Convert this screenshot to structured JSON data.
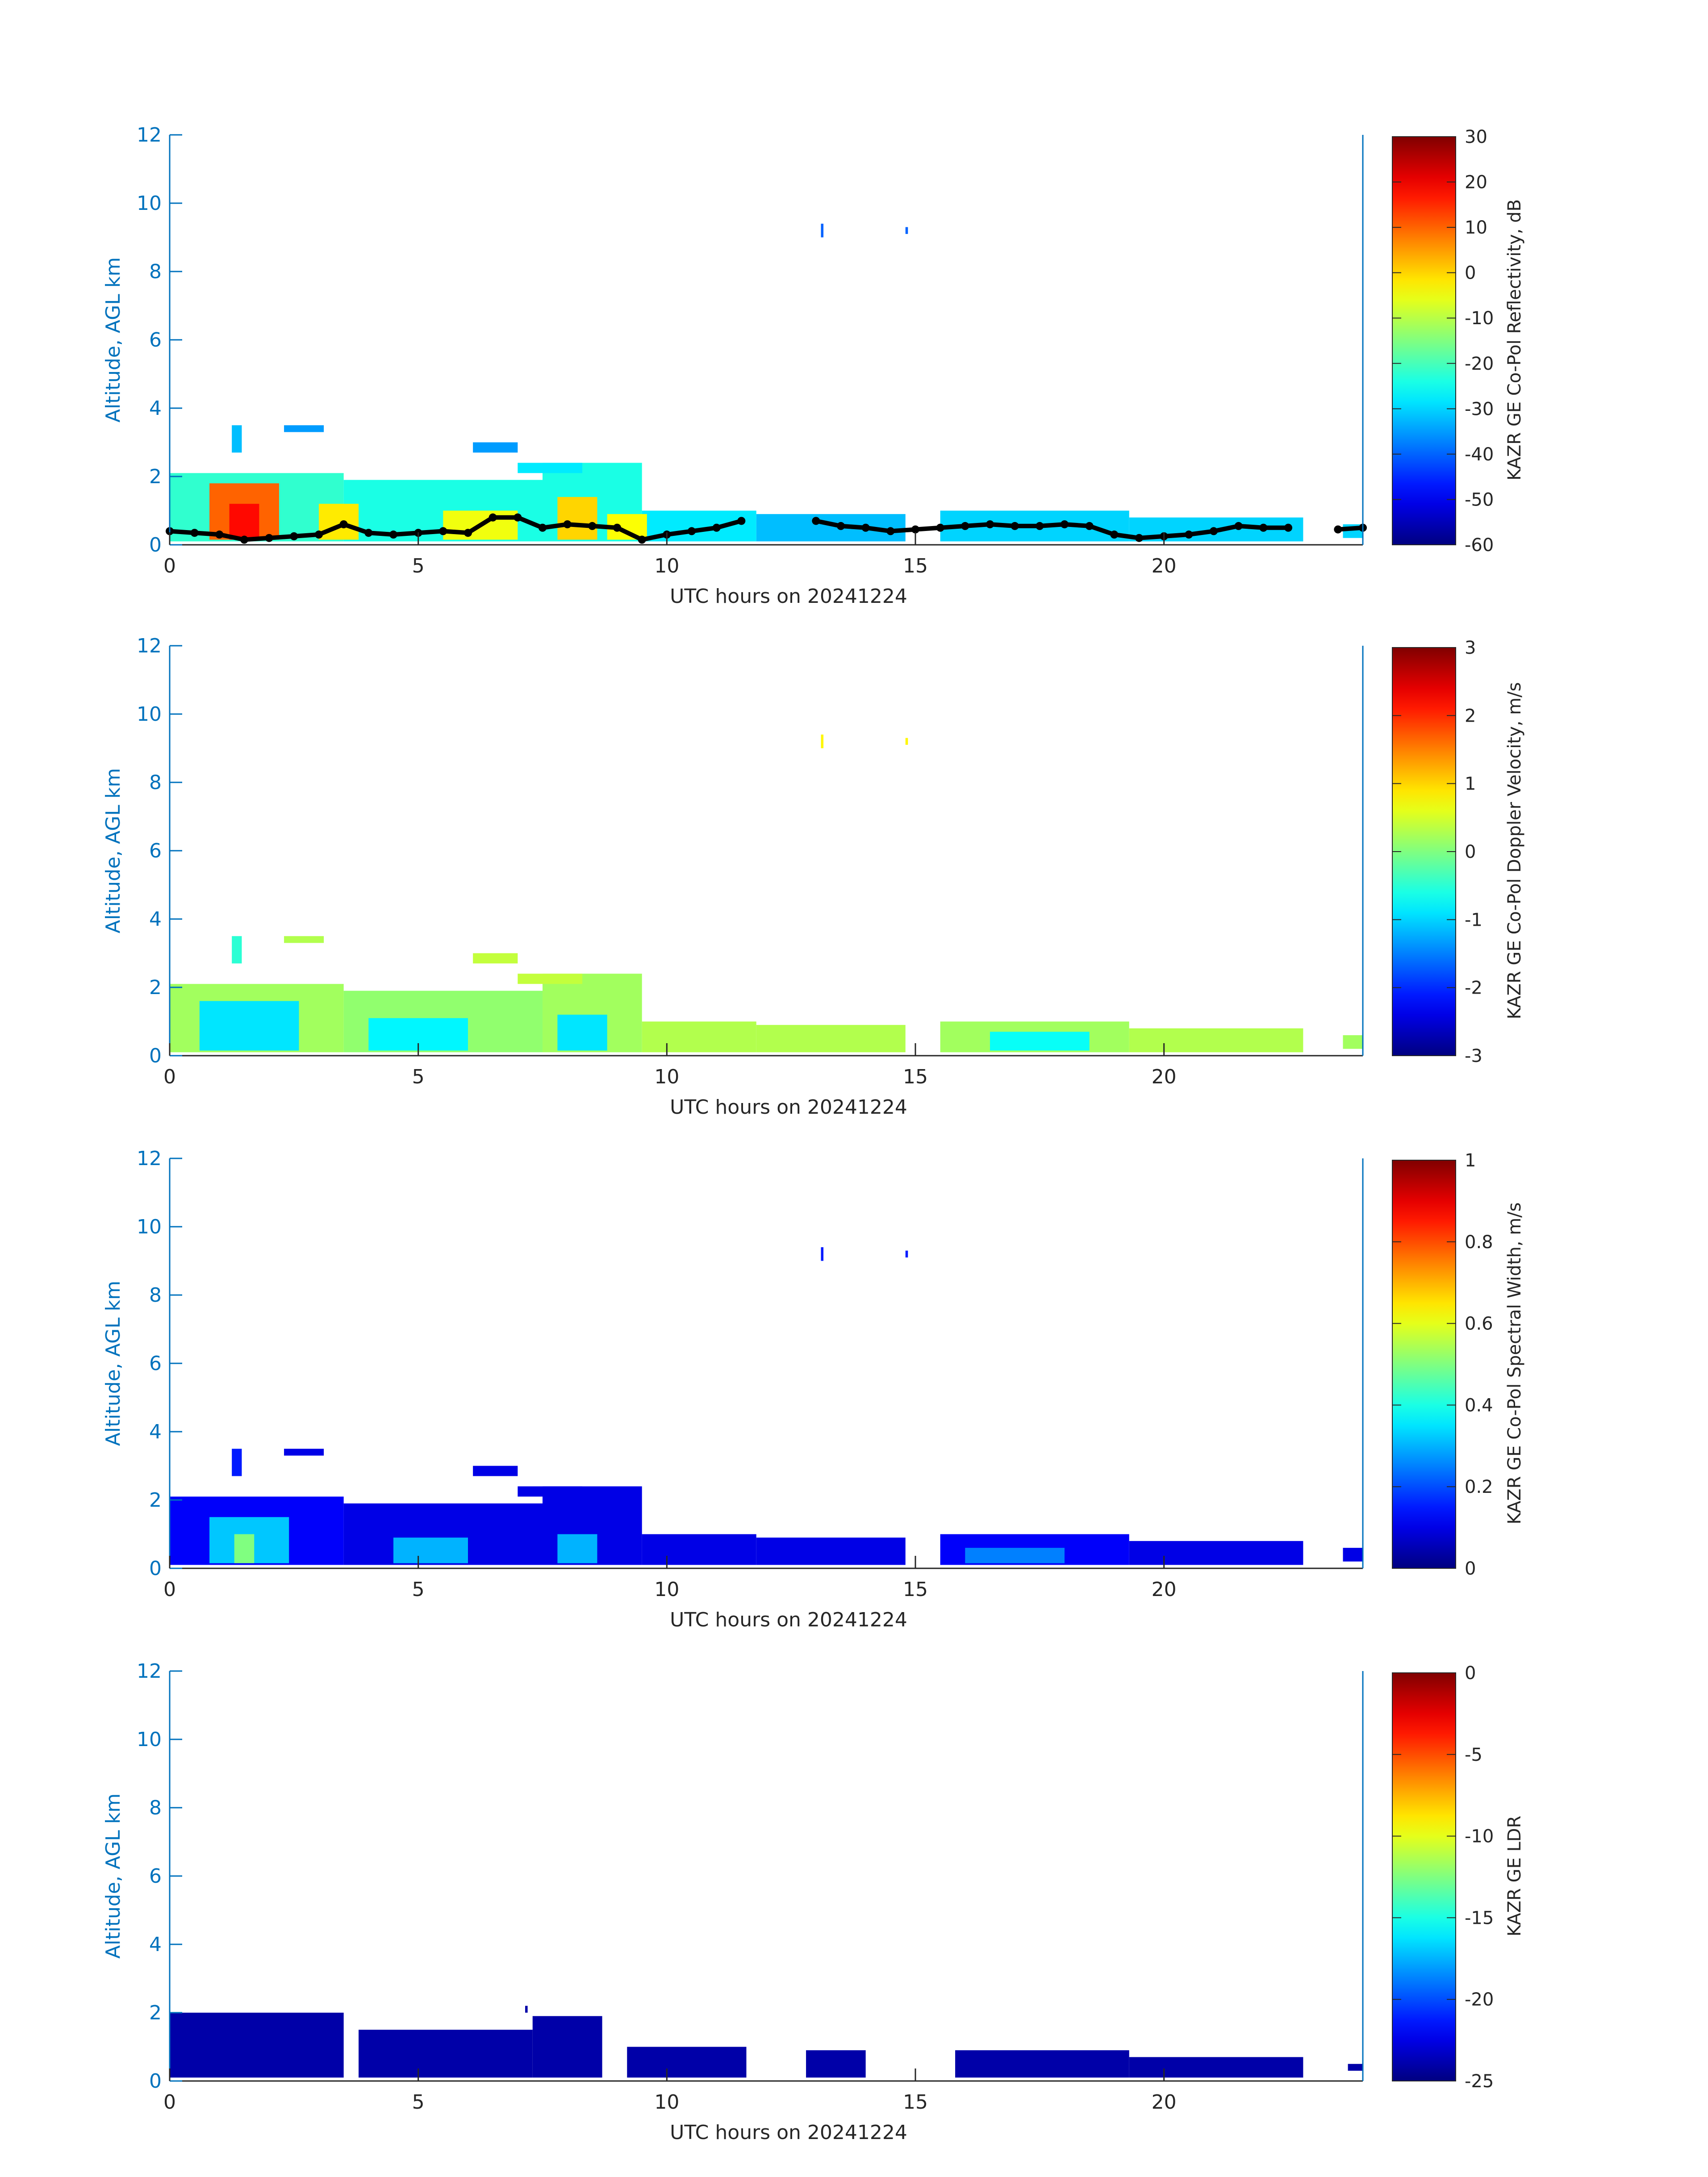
{
  "figure": {
    "background": "#ffffff",
    "axis_color": "#0072bd",
    "text_color": "#262626"
  },
  "chart_data": [
    {
      "type": "heatmap",
      "variable": "reflectivity",
      "xlabel": "UTC hours on 20241224",
      "ylabel": "Altitude, AGL km",
      "xlim": [
        0,
        24
      ],
      "ylim": [
        0,
        12
      ],
      "xticks": [
        "0",
        "5",
        "10",
        "15",
        "20"
      ],
      "xtick_values": [
        0,
        5,
        10,
        15,
        20
      ],
      "yticks": [
        "0",
        "2",
        "4",
        "6",
        "8",
        "10",
        "12"
      ],
      "ytick_values": [
        0,
        2,
        4,
        6,
        8,
        10,
        12
      ],
      "colorbar": {
        "label": "KAZR GE Co-Pol Reflectivity, dB",
        "range": [
          -60,
          30
        ],
        "colormap": "jet",
        "ticks": [
          "30",
          "20",
          "10",
          "0",
          "-10",
          "-20",
          "-30",
          "-40",
          "-50",
          "-60"
        ],
        "tick_values": [
          30,
          20,
          10,
          0,
          -10,
          -20,
          -30,
          -40,
          -50,
          -60
        ]
      },
      "overlay": {
        "name": "cloud base",
        "color": "#000000",
        "x": [
          0,
          0.5,
          1,
          1.5,
          2,
          2.5,
          3,
          3.5,
          4,
          4.5,
          5,
          5.5,
          6,
          6.5,
          7,
          7.5,
          8,
          8.5,
          9,
          9.5,
          10,
          10.5,
          11,
          11.5,
          12,
          12.5,
          13,
          13.5,
          14,
          14.5,
          15,
          15.5,
          16,
          16.5,
          17,
          17.5,
          18,
          18.5,
          19,
          19.5,
          20,
          20.5,
          21,
          21.5,
          22,
          22.5,
          23,
          23.5,
          24
        ],
        "y": [
          0.4,
          0.35,
          0.3,
          0.15,
          0.2,
          0.25,
          0.3,
          0.6,
          0.35,
          0.3,
          0.35,
          0.4,
          0.35,
          0.8,
          0.8,
          0.5,
          0.6,
          0.55,
          0.5,
          0.15,
          0.3,
          0.4,
          0.5,
          0.7,
          null,
          null,
          0.7,
          0.55,
          0.5,
          0.4,
          0.45,
          0.5,
          0.55,
          0.6,
          0.55,
          0.55,
          0.6,
          0.55,
          0.3,
          0.2,
          0.25,
          0.3,
          0.4,
          0.55,
          0.5,
          0.5,
          null,
          0.45,
          0.5
        ]
      },
      "regions": [
        {
          "x": [
            0,
            3.5
          ],
          "y": [
            0.1,
            2.1
          ],
          "value": -22
        },
        {
          "x": [
            3.5,
            7.5
          ],
          "y": [
            0.1,
            1.9
          ],
          "value": -24
        },
        {
          "x": [
            7.5,
            9.5
          ],
          "y": [
            0.1,
            2.4
          ],
          "value": -24
        },
        {
          "x": [
            9.5,
            11.8
          ],
          "y": [
            0.1,
            1.0
          ],
          "value": -28
        },
        {
          "x": [
            11.8,
            14.8
          ],
          "y": [
            0.1,
            0.9
          ],
          "value": -32
        },
        {
          "x": [
            15.5,
            19.3
          ],
          "y": [
            0.1,
            1.0
          ],
          "value": -30
        },
        {
          "x": [
            19.3,
            22.8
          ],
          "y": [
            0.1,
            0.8
          ],
          "value": -30
        },
        {
          "x": [
            23.6,
            24
          ],
          "y": [
            0.2,
            0.6
          ],
          "value": -30
        },
        {
          "x": [
            0.8,
            2.2
          ],
          "y": [
            0.15,
            1.8
          ],
          "value": 10
        },
        {
          "x": [
            1.2,
            1.8
          ],
          "y": [
            0.15,
            1.2
          ],
          "value": 18
        },
        {
          "x": [
            3.0,
            3.8
          ],
          "y": [
            0.15,
            1.2
          ],
          "value": -2
        },
        {
          "x": [
            5.5,
            7.0
          ],
          "y": [
            0.15,
            1.0
          ],
          "value": -5
        },
        {
          "x": [
            7.8,
            8.6
          ],
          "y": [
            0.15,
            1.4
          ],
          "value": 0
        },
        {
          "x": [
            8.8,
            9.6
          ],
          "y": [
            0.15,
            0.9
          ],
          "value": -4
        },
        {
          "x": [
            1.25,
            1.45
          ],
          "y": [
            2.7,
            3.5
          ],
          "value": -32
        },
        {
          "x": [
            2.3,
            3.1
          ],
          "y": [
            3.3,
            3.5
          ],
          "value": -35
        },
        {
          "x": [
            6.1,
            7.0
          ],
          "y": [
            2.7,
            3.0
          ],
          "value": -35
        },
        {
          "x": [
            7.0,
            8.3
          ],
          "y": [
            2.1,
            2.4
          ],
          "value": -28
        },
        {
          "x": [
            13.1,
            13.15
          ],
          "y": [
            9.0,
            9.4
          ],
          "value": -40
        },
        {
          "x": [
            14.8,
            14.85
          ],
          "y": [
            9.1,
            9.3
          ],
          "value": -40
        }
      ]
    },
    {
      "type": "heatmap",
      "variable": "doppler_velocity",
      "xlabel": "UTC hours on 20241224",
      "ylabel": "Altitude, AGL km",
      "xlim": [
        0,
        24
      ],
      "ylim": [
        0,
        12
      ],
      "xticks": [
        "0",
        "5",
        "10",
        "15",
        "20"
      ],
      "xtick_values": [
        0,
        5,
        10,
        15,
        20
      ],
      "yticks": [
        "0",
        "2",
        "4",
        "6",
        "8",
        "10",
        "12"
      ],
      "ytick_values": [
        0,
        2,
        4,
        6,
        8,
        10,
        12
      ],
      "colorbar": {
        "label": "KAZR GE Co-Pol Doppler Velocity, m/s",
        "range": [
          -3,
          3
        ],
        "colormap": "jet",
        "ticks": [
          "3",
          "2",
          "1",
          "0",
          "-1",
          "-2",
          "-3"
        ],
        "tick_values": [
          3,
          2,
          1,
          0,
          -1,
          -2,
          -3
        ]
      },
      "regions": [
        {
          "x": [
            0,
            3.5
          ],
          "y": [
            0.1,
            2.1
          ],
          "value": 0.2
        },
        {
          "x": [
            3.5,
            7.5
          ],
          "y": [
            0.1,
            1.9
          ],
          "value": 0.1
        },
        {
          "x": [
            7.5,
            9.5
          ],
          "y": [
            0.1,
            2.4
          ],
          "value": 0.2
        },
        {
          "x": [
            9.5,
            11.8
          ],
          "y": [
            0.1,
            1.0
          ],
          "value": 0.3
        },
        {
          "x": [
            11.8,
            14.8
          ],
          "y": [
            0.1,
            0.9
          ],
          "value": 0.3
        },
        {
          "x": [
            15.5,
            19.3
          ],
          "y": [
            0.1,
            1.0
          ],
          "value": 0.2
        },
        {
          "x": [
            19.3,
            22.8
          ],
          "y": [
            0.1,
            0.8
          ],
          "value": 0.3
        },
        {
          "x": [
            23.6,
            24
          ],
          "y": [
            0.2,
            0.6
          ],
          "value": 0.2
        },
        {
          "x": [
            0.6,
            2.6
          ],
          "y": [
            0.15,
            1.6
          ],
          "value": -0.9
        },
        {
          "x": [
            4.0,
            6.0
          ],
          "y": [
            0.15,
            1.1
          ],
          "value": -0.8
        },
        {
          "x": [
            7.8,
            8.8
          ],
          "y": [
            0.15,
            1.2
          ],
          "value": -0.9
        },
        {
          "x": [
            16.5,
            18.5
          ],
          "y": [
            0.15,
            0.7
          ],
          "value": -0.7
        },
        {
          "x": [
            1.25,
            1.45
          ],
          "y": [
            2.7,
            3.5
          ],
          "value": -0.5
        },
        {
          "x": [
            2.3,
            3.1
          ],
          "y": [
            3.3,
            3.5
          ],
          "value": 0.3
        },
        {
          "x": [
            6.1,
            7.0
          ],
          "y": [
            2.7,
            3.0
          ],
          "value": 0.4
        },
        {
          "x": [
            7.0,
            8.3
          ],
          "y": [
            2.1,
            2.4
          ],
          "value": 0.4
        },
        {
          "x": [
            13.1,
            13.15
          ],
          "y": [
            9.0,
            9.4
          ],
          "value": 0.8
        },
        {
          "x": [
            14.8,
            14.85
          ],
          "y": [
            9.1,
            9.3
          ],
          "value": 0.8
        }
      ]
    },
    {
      "type": "heatmap",
      "variable": "spectral_width",
      "xlabel": "UTC hours on 20241224",
      "ylabel": "Altitude, AGL km",
      "xlim": [
        0,
        24
      ],
      "ylim": [
        0,
        12
      ],
      "xticks": [
        "0",
        "5",
        "10",
        "15",
        "20"
      ],
      "xtick_values": [
        0,
        5,
        10,
        15,
        20
      ],
      "yticks": [
        "0",
        "2",
        "4",
        "6",
        "8",
        "10",
        "12"
      ],
      "ytick_values": [
        0,
        2,
        4,
        6,
        8,
        10,
        12
      ],
      "colorbar": {
        "label": "KAZR GE Co-Pol Spectral Width, m/s",
        "range": [
          0,
          1
        ],
        "colormap": "jet",
        "ticks": [
          "1",
          "0.8",
          "0.6",
          "0.4",
          "0.2",
          "0"
        ],
        "tick_values": [
          1,
          0.8,
          0.6,
          0.4,
          0.2,
          0
        ]
      },
      "regions": [
        {
          "x": [
            0,
            3.5
          ],
          "y": [
            0.1,
            2.1
          ],
          "value": 0.12
        },
        {
          "x": [
            3.5,
            7.5
          ],
          "y": [
            0.1,
            1.9
          ],
          "value": 0.1
        },
        {
          "x": [
            7.5,
            9.5
          ],
          "y": [
            0.1,
            2.4
          ],
          "value": 0.1
        },
        {
          "x": [
            9.5,
            11.8
          ],
          "y": [
            0.1,
            1.0
          ],
          "value": 0.1
        },
        {
          "x": [
            11.8,
            14.8
          ],
          "y": [
            0.1,
            0.9
          ],
          "value": 0.1
        },
        {
          "x": [
            15.5,
            19.3
          ],
          "y": [
            0.1,
            1.0
          ],
          "value": 0.12
        },
        {
          "x": [
            19.3,
            22.8
          ],
          "y": [
            0.1,
            0.8
          ],
          "value": 0.1
        },
        {
          "x": [
            23.6,
            24
          ],
          "y": [
            0.2,
            0.6
          ],
          "value": 0.1
        },
        {
          "x": [
            0.8,
            2.4
          ],
          "y": [
            0.15,
            1.5
          ],
          "value": 0.32
        },
        {
          "x": [
            1.3,
            1.7
          ],
          "y": [
            0.15,
            1.0
          ],
          "value": 0.5
        },
        {
          "x": [
            4.5,
            6.0
          ],
          "y": [
            0.15,
            0.9
          ],
          "value": 0.3
        },
        {
          "x": [
            7.8,
            8.6
          ],
          "y": [
            0.15,
            1.0
          ],
          "value": 0.3
        },
        {
          "x": [
            16.0,
            18.0
          ],
          "y": [
            0.15,
            0.6
          ],
          "value": 0.25
        },
        {
          "x": [
            1.25,
            1.45
          ],
          "y": [
            2.7,
            3.5
          ],
          "value": 0.15
        },
        {
          "x": [
            2.3,
            3.1
          ],
          "y": [
            3.3,
            3.5
          ],
          "value": 0.1
        },
        {
          "x": [
            6.1,
            7.0
          ],
          "y": [
            2.7,
            3.0
          ],
          "value": 0.1
        },
        {
          "x": [
            7.0,
            8.3
          ],
          "y": [
            2.1,
            2.4
          ],
          "value": 0.1
        },
        {
          "x": [
            13.1,
            13.15
          ],
          "y": [
            9.0,
            9.4
          ],
          "value": 0.15
        },
        {
          "x": [
            14.8,
            14.85
          ],
          "y": [
            9.1,
            9.3
          ],
          "value": 0.15
        }
      ]
    },
    {
      "type": "heatmap",
      "variable": "ldr",
      "xlabel": "UTC hours on 20241224",
      "ylabel": "Altitude, AGL km",
      "xlim": [
        0,
        24
      ],
      "ylim": [
        0,
        12
      ],
      "xticks": [
        "0",
        "5",
        "10",
        "15",
        "20"
      ],
      "xtick_values": [
        0,
        5,
        10,
        15,
        20
      ],
      "yticks": [
        "0",
        "2",
        "4",
        "6",
        "8",
        "10",
        "12"
      ],
      "ytick_values": [
        0,
        2,
        4,
        6,
        8,
        10,
        12
      ],
      "colorbar": {
        "label": "KAZR GE LDR",
        "range": [
          -25,
          0
        ],
        "colormap": "jet",
        "ticks": [
          "0",
          "-5",
          "-10",
          "-15",
          "-20",
          "-25"
        ],
        "tick_values": [
          0,
          -5,
          -10,
          -15,
          -20,
          -25
        ]
      },
      "regions": [
        {
          "x": [
            0,
            3.5
          ],
          "y": [
            0.1,
            2.0
          ],
          "value": -24
        },
        {
          "x": [
            3.8,
            7.3
          ],
          "y": [
            0.1,
            1.5
          ],
          "value": -24
        },
        {
          "x": [
            7.3,
            8.7
          ],
          "y": [
            0.1,
            1.9
          ],
          "value": -24
        },
        {
          "x": [
            9.2,
            11.6
          ],
          "y": [
            0.1,
            1.0
          ],
          "value": -24
        },
        {
          "x": [
            12.8,
            14.0
          ],
          "y": [
            0.1,
            0.9
          ],
          "value": -24
        },
        {
          "x": [
            15.8,
            19.3
          ],
          "y": [
            0.1,
            0.9
          ],
          "value": -24
        },
        {
          "x": [
            19.3,
            22.8
          ],
          "y": [
            0.1,
            0.7
          ],
          "value": -24
        },
        {
          "x": [
            23.7,
            24
          ],
          "y": [
            0.3,
            0.5
          ],
          "value": -24
        },
        {
          "x": [
            7.15,
            7.2
          ],
          "y": [
            2.0,
            2.2
          ],
          "value": -24
        }
      ]
    }
  ]
}
